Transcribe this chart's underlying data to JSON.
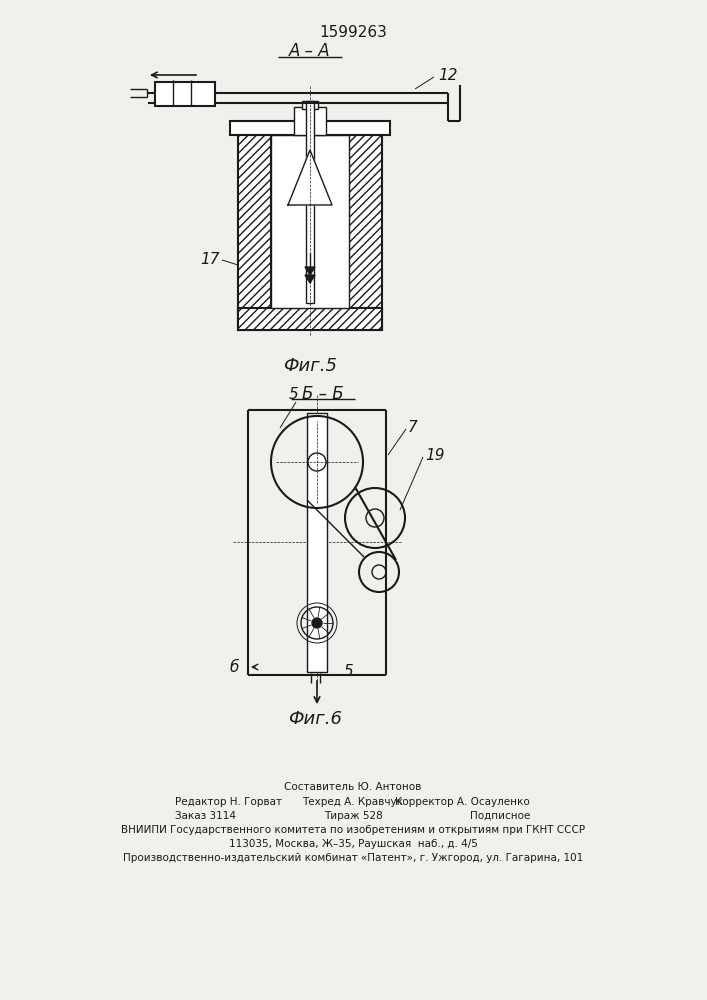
{
  "title": "1599263",
  "fig5_label": "А – А",
  "fig5_caption": "Фиг.5",
  "fig6_label": "Б – Б",
  "fig6_caption": "Фиг.6",
  "label_12": "12",
  "label_17": "17",
  "label_5a": "5",
  "label_5b": "5",
  "label_7": "7",
  "label_19": "19",
  "label_6": "б",
  "footer_line1": "Составитель Ю. Антонов",
  "footer_line2_left": "Редактор Н. Горват",
  "footer_line2_mid": "Техред А. Кравчук",
  "footer_line2_right": "Корректор А. Осауленко",
  "footer_line3_left": "Заказ 3114",
  "footer_line3_mid": "Тираж 528",
  "footer_line3_right": "Подписное",
  "footer_line4": "ВНИИПИ Государственного комитета по изобретениям и открытиям при ГКНТ СССР",
  "footer_line5": "113035, Москва, Ж–35, Раушская  наб., д. 4/5",
  "footer_line6": "Производственно-издательский комбинат «Патент», г. Ужгород, ул. Гагарина, 101",
  "bg_color": "#f2f0ec",
  "line_color": "#1a1a1a"
}
